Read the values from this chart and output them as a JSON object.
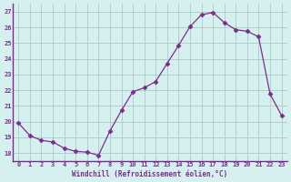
{
  "x": [
    0,
    1,
    2,
    3,
    4,
    5,
    6,
    7,
    8,
    9,
    10,
    11,
    12,
    13,
    14,
    15,
    16,
    17,
    18,
    19,
    20,
    21,
    22,
    23
  ],
  "y": [
    19.9,
    19.1,
    18.8,
    18.7,
    18.3,
    18.1,
    18.05,
    17.85,
    19.4,
    20.7,
    21.9,
    22.15,
    22.55,
    23.7,
    24.85,
    26.05,
    26.8,
    26.95,
    26.3,
    25.85,
    25.75,
    25.4,
    21.75,
    20.4
  ],
  "line_color": "#7b2d8b",
  "marker": "D",
  "marker_size": 2.5,
  "bg_color": "#d6f0f0",
  "grid_color": "#b0cece",
  "xlabel": "Windchill (Refroidissement éolien,°C)",
  "ylim": [
    17.5,
    27.5
  ],
  "xlim": [
    -0.5,
    23.5
  ],
  "yticks": [
    18,
    19,
    20,
    21,
    22,
    23,
    24,
    25,
    26,
    27
  ],
  "xticks": [
    0,
    1,
    2,
    3,
    4,
    5,
    6,
    7,
    8,
    9,
    10,
    11,
    12,
    13,
    14,
    15,
    16,
    17,
    18,
    19,
    20,
    21,
    22,
    23
  ],
  "tick_color": "#7b2d8b",
  "label_color": "#7b2d8b",
  "axis_color": "#7b2d8b"
}
